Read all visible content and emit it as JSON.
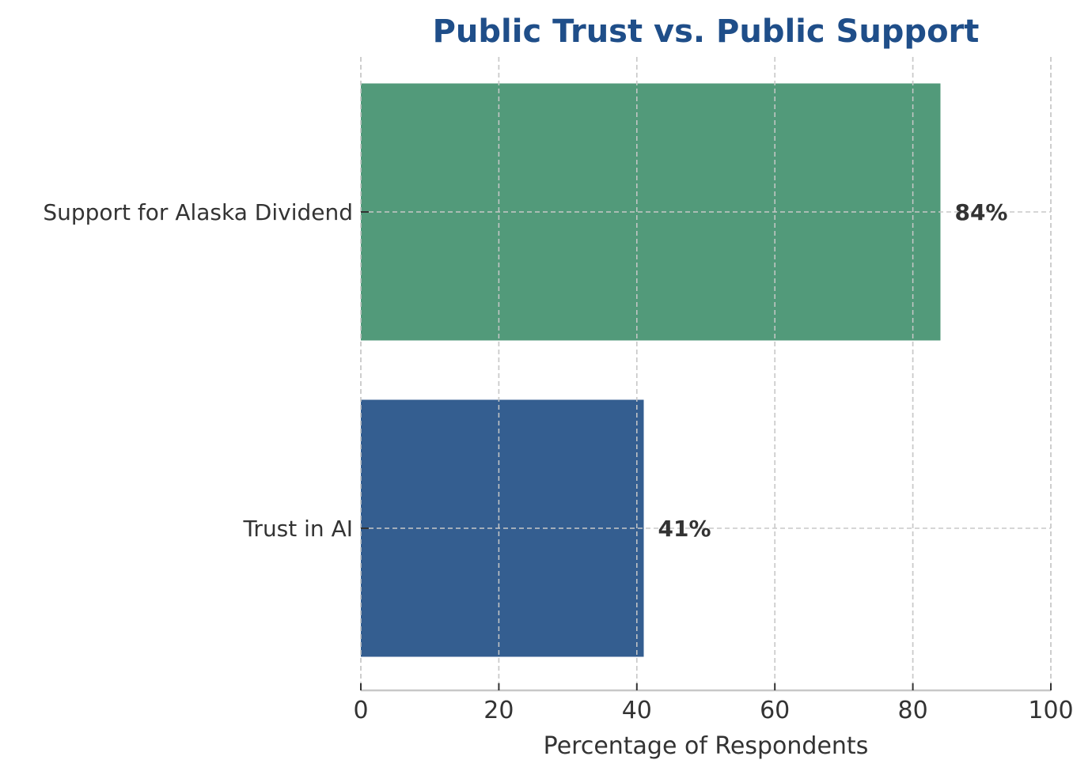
{
  "chart_data": {
    "type": "bar",
    "orientation": "horizontal",
    "title": "Public Trust vs. Public Support",
    "xlabel": "Percentage of Respondents",
    "ylabel": "",
    "categories": [
      "Support for Alaska Dividend",
      "Trust in AI"
    ],
    "values": [
      84,
      41
    ],
    "data_labels": [
      "84%",
      "41%"
    ],
    "colors": [
      "#529a7a",
      "#345e90"
    ],
    "title_color": "#1f4e89",
    "xlim": [
      0,
      100
    ],
    "xticks": [
      0,
      20,
      40,
      60,
      80,
      100
    ],
    "grid": true,
    "legend": "none"
  }
}
